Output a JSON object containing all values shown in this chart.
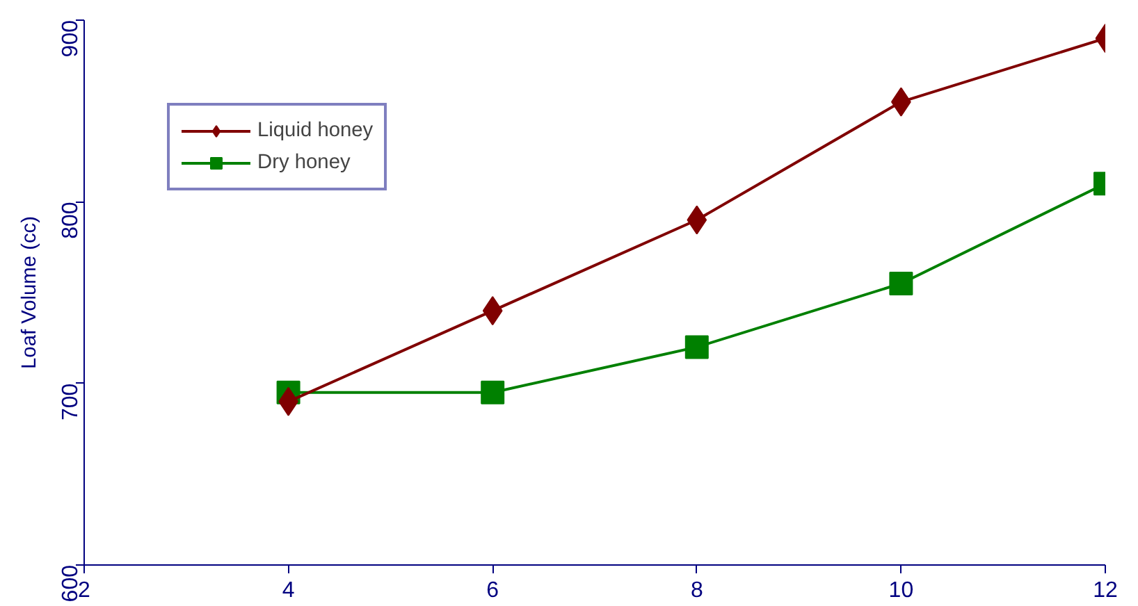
{
  "chart_data": {
    "type": "line",
    "ylabel": "Loaf Volume (cc)",
    "x": [
      4,
      6,
      8,
      10,
      12
    ],
    "series": [
      {
        "name": "Liquid honey",
        "color": "#800000",
        "values": [
          690,
          740,
          790,
          855,
          890
        ],
        "marker": "diamond"
      },
      {
        "name": "Dry honey",
        "color": "#008000",
        "values": [
          695,
          695,
          720,
          755,
          810
        ],
        "marker": "square"
      }
    ],
    "xlim": [
      2,
      12
    ],
    "ylim": [
      600,
      900
    ],
    "xticks": [
      2,
      4,
      6,
      8,
      10,
      12
    ],
    "yticks": [
      600,
      700,
      800,
      900
    ],
    "grid": false,
    "legend": "top left",
    "line_style": "solid"
  }
}
